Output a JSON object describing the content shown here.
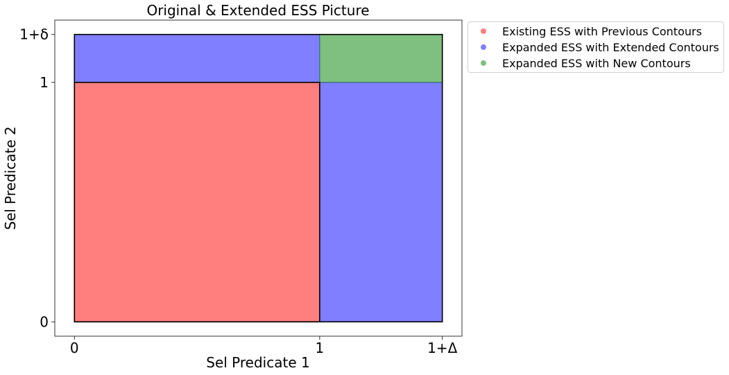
{
  "chart_data": {
    "type": "area",
    "title": "Original & Extended ESS Picture",
    "xlabel": "Sel Predicate 1",
    "ylabel": "Sel Predicate 2",
    "x_ticks": [
      {
        "value": 0,
        "label": "0"
      },
      {
        "value": 1,
        "label": "1"
      },
      {
        "value": 1.5,
        "label": "1+Δ"
      }
    ],
    "y_ticks": [
      {
        "value": 0,
        "label": "0"
      },
      {
        "value": 1,
        "label": "1"
      },
      {
        "value": 1.2,
        "label": "1+δ"
      }
    ],
    "xlim": [
      -0.08,
      1.58
    ],
    "ylim": [
      -0.06,
      1.26
    ],
    "series": [
      {
        "name": "Existing ESS with Previous Contours",
        "color": "#ff0000",
        "regions": [
          {
            "x": [
              0,
              1
            ],
            "y": [
              0,
              1
            ]
          }
        ]
      },
      {
        "name": "Expanded ESS with Extended Contours",
        "color": "#0000ff",
        "regions": [
          {
            "x": [
              0,
              1
            ],
            "y": [
              1,
              1.2
            ]
          },
          {
            "x": [
              1,
              1.5
            ],
            "y": [
              0,
              1
            ]
          }
        ]
      },
      {
        "name": "Expanded ESS with New Contours",
        "color": "#008000",
        "regions": [
          {
            "x": [
              1,
              1.5
            ],
            "y": [
              1,
              1.2
            ]
          }
        ]
      }
    ],
    "legend_position": "outside-top-right",
    "grid": false
  }
}
